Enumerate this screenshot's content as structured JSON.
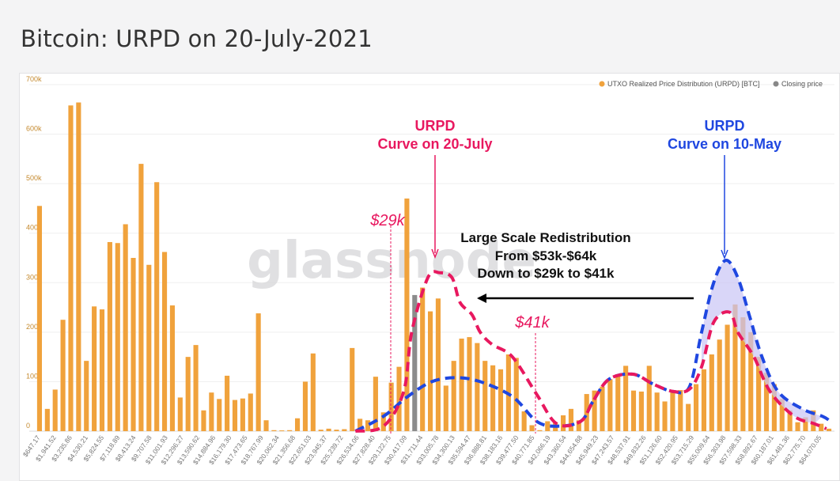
{
  "page": {
    "title": "Bitcoin: URPD on 20-July-2021"
  },
  "watermark": "glassnode",
  "legend": [
    {
      "label": "UTXO Realized Price Distribution (URPD) [BTC]",
      "color": "#f0a23c"
    },
    {
      "label": "Closing price",
      "color": "#888888"
    }
  ],
  "colors": {
    "bar": "#f0a23c",
    "closing": "#8c8c8c",
    "pink": "#e8185f",
    "blue": "#1f47e0",
    "arrow": "#000000"
  },
  "annotations": {
    "july_label_1": "URPD",
    "july_label_2": "Curve on 20-July",
    "may_label_1": "URPD",
    "may_label_2": "Curve on 10-May",
    "lo": "$29k",
    "hi": "$41k",
    "redist_1": "Large Scale Redistribution",
    "redist_2": "From $53k-$64k",
    "redist_3": "Down to $29k to $41k"
  },
  "chart_data": {
    "type": "bar",
    "title": "Bitcoin: URPD on 20-July-2021",
    "ylim": [
      0,
      700000
    ],
    "y_ticks": [
      "0",
      "100k",
      "200k",
      "300k",
      "400k",
      "500k",
      "600k",
      "700k"
    ],
    "x_tick_labels": [
      "$647.17",
      "$1,941.52",
      "$3,235.86",
      "$4,530.21",
      "$5,824.55",
      "$7,118.89",
      "$8,413.24",
      "$9,707.58",
      "$11,001.93",
      "$12,296.27",
      "$13,590.62",
      "$14,884.96",
      "$16,179.30",
      "$17,473.65",
      "$18,767.99",
      "$20,062.34",
      "$21,356.68",
      "$22,651.03",
      "$23,945.37",
      "$25,239.72",
      "$26,534.06",
      "$27,828.40",
      "$29,122.75",
      "$30,417.09",
      "$31,711.44",
      "$33,005.78",
      "$34,300.13",
      "$35,594.47",
      "$36,888.81",
      "$38,183.16",
      "$39,477.50",
      "$40,771.85",
      "$42,066.19",
      "$43,360.54",
      "$44,654.88",
      "$45,949.23",
      "$47,243.57",
      "$48,537.91",
      "$49,832.26",
      "$51,126.60",
      "$52,420.95",
      "$53,715.29",
      "$55,009.64",
      "$56,303.98",
      "$57,598.33",
      "$58,892.67",
      "$60,187.01",
      "$61,481.36",
      "$62,775.70",
      "$64,070.05"
    ],
    "bar_values": [
      455000,
      45000,
      84000,
      225000,
      658000,
      664000,
      142000,
      252000,
      246000,
      382000,
      380000,
      418000,
      350000,
      540000,
      336000,
      503000,
      362000,
      254000,
      68000,
      150000,
      174000,
      42000,
      78000,
      65000,
      112000,
      63000,
      66000,
      76000,
      238000,
      22000,
      2000,
      1500,
      2000,
      26000,
      100000,
      157000,
      3000,
      5000,
      3000,
      4000,
      168000,
      25000,
      22000,
      110000,
      38000,
      98000,
      130000,
      470000,
      275000,
      290000,
      242000,
      268000,
      92000,
      142000,
      187000,
      190000,
      178000,
      142000,
      133000,
      125000,
      155000,
      148000,
      40000,
      12000,
      2000,
      20000,
      18000,
      32000,
      45000,
      22000,
      75000,
      82000,
      90000,
      105000,
      115000,
      132000,
      82000,
      80000,
      132000,
      78000,
      60000,
      80000,
      83000,
      55000,
      95000,
      125000,
      155000,
      185000,
      215000,
      256000,
      230000,
      200000,
      150000,
      118000,
      95000,
      65000,
      42000,
      18000,
      28000,
      42000,
      15000,
      5000
    ],
    "closing_price_bar": {
      "index": 48,
      "value": 275000
    },
    "series": [
      {
        "name": "UTXO Realized Price Distribution (URPD) [BTC]",
        "type": "bar"
      },
      {
        "name": "Closing price",
        "type": "bar"
      }
    ],
    "curves": {
      "july_20": {
        "x_frac": [
          0.405,
          0.44,
          0.465,
          0.475,
          0.495,
          0.51,
          0.525,
          0.535,
          0.55,
          0.56,
          0.575,
          0.6,
          0.63,
          0.655,
          0.685,
          0.7,
          0.72,
          0.75,
          0.775,
          0.8,
          0.82,
          0.835,
          0.85,
          0.87,
          0.88,
          0.9,
          0.92,
          0.95,
          0.975,
          0.99
        ],
        "y": [
          0,
          10000,
          80000,
          200000,
          310000,
          320000,
          310000,
          260000,
          235000,
          200000,
          175000,
          150000,
          75000,
          15000,
          20000,
          60000,
          105000,
          115000,
          95000,
          80000,
          85000,
          130000,
          220000,
          240000,
          200000,
          150000,
          80000,
          30000,
          15000,
          5000
        ]
      },
      "may_10": {
        "x_frac": [
          0.405,
          0.44,
          0.47,
          0.5,
          0.53,
          0.56,
          0.6,
          0.63,
          0.655,
          0.685,
          0.7,
          0.72,
          0.75,
          0.775,
          0.8,
          0.82,
          0.835,
          0.85,
          0.865,
          0.88,
          0.895,
          0.91,
          0.93,
          0.96,
          0.985,
          0.995
        ],
        "y": [
          0,
          30000,
          70000,
          100000,
          108000,
          100000,
          70000,
          20000,
          10000,
          20000,
          60000,
          105000,
          115000,
          95000,
          80000,
          90000,
          200000,
          300000,
          345000,
          310000,
          230000,
          150000,
          80000,
          45000,
          30000,
          20000
        ]
      }
    }
  }
}
